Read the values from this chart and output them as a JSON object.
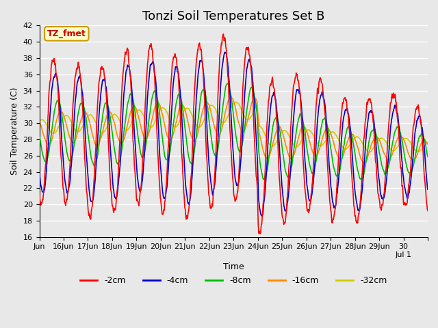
{
  "title": "Tonzi Soil Temperatures Set B",
  "xlabel": "Time",
  "ylabel": "Soil Temperature (C)",
  "ylim": [
    16,
    42
  ],
  "yticks": [
    16,
    18,
    20,
    22,
    24,
    26,
    28,
    30,
    32,
    34,
    36,
    38,
    40,
    42
  ],
  "background_color": "#e8e8e8",
  "plot_bg_color": "#e8e8e8",
  "grid_color": "white",
  "annotation_text": "TZ_fmet",
  "annotation_bg": "#ffffcc",
  "annotation_border": "#cc9900",
  "annotation_text_color": "#cc0000",
  "legend_entries": [
    "-2cm",
    "-4cm",
    "-8cm",
    "-16cm",
    "-32cm"
  ],
  "line_colors": [
    "#ff0000",
    "#0000cc",
    "#00bb00",
    "#ff8800",
    "#cccc00"
  ],
  "line_widths": [
    1.2,
    1.2,
    1.2,
    1.2,
    1.2
  ],
  "title_fontsize": 13,
  "label_fontsize": 9,
  "tick_fontsize": 8,
  "legend_fontsize": 9,
  "day_tick_positions": [
    0,
    24,
    48,
    72,
    96,
    120,
    144,
    168,
    192,
    216,
    240,
    264,
    288,
    312,
    336,
    360,
    384
  ],
  "day_tick_labels": [
    "Jun",
    "16Jun",
    "17Jun",
    "18Jun",
    "19Jun",
    "20Jun",
    "21Jun",
    "22Jun",
    "23Jun",
    "24Jun",
    "25Jun",
    "26Jun",
    "27Jun",
    "28Jun",
    "29Jun",
    "30\nJul 1",
    ""
  ]
}
